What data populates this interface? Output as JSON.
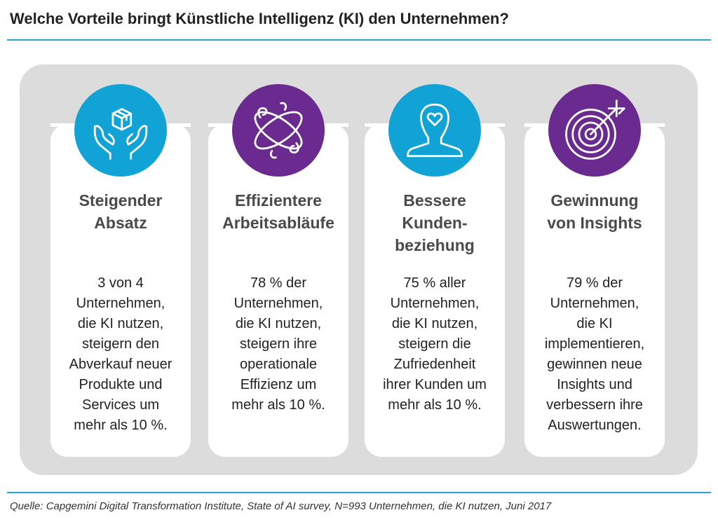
{
  "title": "Welche Vorteile bringt Künstliche Intelligenz (KI) den Unternehmen?",
  "source": "Quelle: Capgemini Digital Transformation Institute, State of AI survey, N=993 Unternehmen, die KI nutzen, Juni 2017",
  "colors": {
    "blue": "#12a3d6",
    "purple": "#6b2a8f",
    "rule": "#29a3d2",
    "panel": "#dcdcdc"
  },
  "cards": [
    {
      "icon": "hands-box-icon",
      "color": "#12a3d6",
      "heading": "Steigender\nAbsatz",
      "text": "3 von 4\nUnternehmen,\ndie KI nutzen,\nsteigern den\nAbverkauf neuer\nProdukte und\nServices um\nmehr als 10 %."
    },
    {
      "icon": "orbit-icon",
      "color": "#6b2a8f",
      "heading": "Effizientere\nArbeitsabläufe",
      "text": "78 % der\nUnternehmen,\ndie KI nutzen,\nsteigern ihre\noperationale\nEffizienz um\nmehr als 10 %."
    },
    {
      "icon": "person-heart-icon",
      "color": "#12a3d6",
      "heading": "Bessere\nKunden-\nbeziehung",
      "text": "75 % aller\nUnternehmen,\ndie KI nutzen,\nsteigern die\nZufriedenheit\nihrer Kunden um\nmehr als 10 %."
    },
    {
      "icon": "target-arrow-icon",
      "color": "#6b2a8f",
      "heading": "Gewinnung\nvon Insights",
      "text": "79 % der\nUnternehmen,\ndie KI\nimplementieren,\ngewinnen neue\nInsights und\nverbessern ihre\nAuswertungen."
    }
  ]
}
